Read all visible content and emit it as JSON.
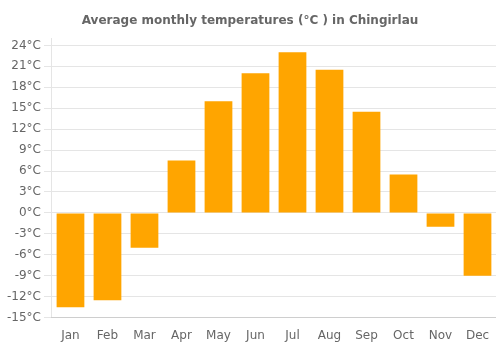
{
  "chart_data": {
    "type": "bar",
    "title": "Average monthly temperatures (°C ) in Chingirlau",
    "categories": [
      "Jan",
      "Feb",
      "Mar",
      "Apr",
      "May",
      "Jun",
      "Jul",
      "Aug",
      "Sep",
      "Oct",
      "Nov",
      "Dec"
    ],
    "values": [
      -13.5,
      -12.5,
      -5.0,
      7.5,
      16.0,
      20.0,
      23.0,
      20.5,
      14.5,
      5.5,
      -2.0,
      -9.0
    ],
    "color": "#FFA500",
    "ylim": [
      -15,
      25
    ],
    "yticks": [
      {
        "value": -15,
        "label": "-15°C"
      },
      {
        "value": -12,
        "label": "-12°C"
      },
      {
        "value": -9,
        "label": "-9°C"
      },
      {
        "value": -6,
        "label": "-6°C"
      },
      {
        "value": -3,
        "label": "-3°C"
      },
      {
        "value": 0,
        "label": "0°C"
      },
      {
        "value": 3,
        "label": "3°C"
      },
      {
        "value": 6,
        "label": "6°C"
      },
      {
        "value": 9,
        "label": "9°C"
      },
      {
        "value": 12,
        "label": "12°C"
      },
      {
        "value": 15,
        "label": "15°C"
      },
      {
        "value": 18,
        "label": "18°C"
      },
      {
        "value": 21,
        "label": "21°C"
      },
      {
        "value": 24,
        "label": "24°C"
      }
    ],
    "grid": true
  }
}
